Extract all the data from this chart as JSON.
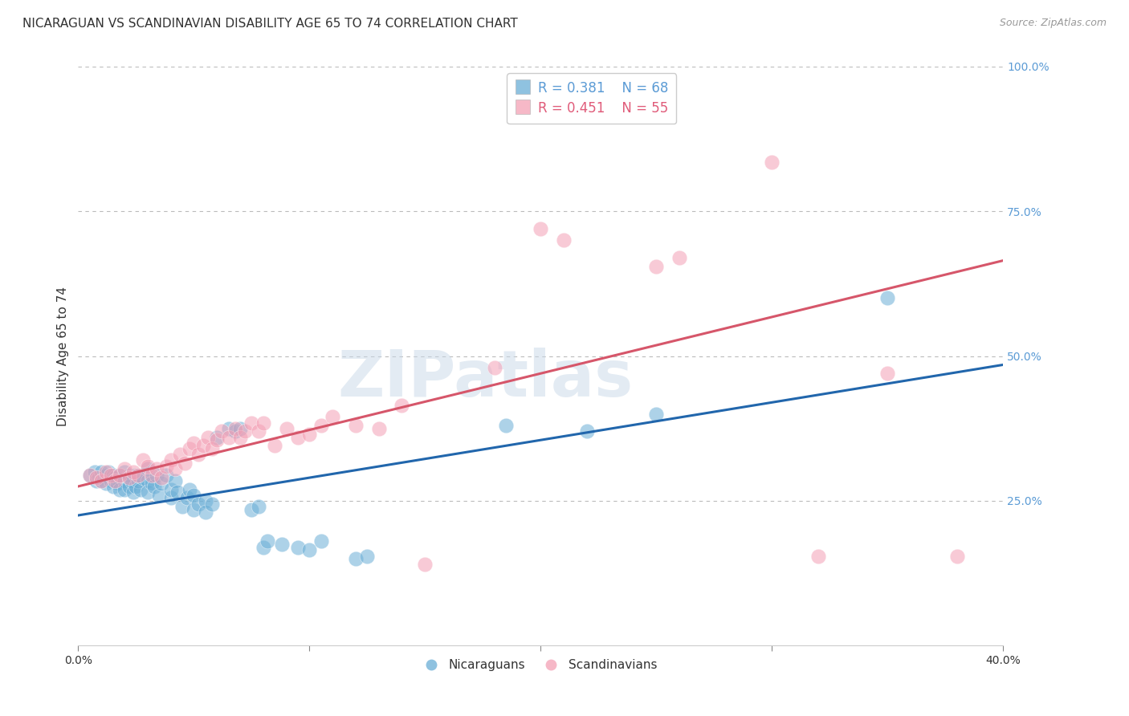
{
  "title": "NICARAGUAN VS SCANDINAVIAN DISABILITY AGE 65 TO 74 CORRELATION CHART",
  "source": "Source: ZipAtlas.com",
  "ylabel": "Disability Age 65 to 74",
  "xlim": [
    0.0,
    0.4
  ],
  "ylim": [
    0.0,
    1.0
  ],
  "xtick_pos": [
    0.0,
    0.1,
    0.2,
    0.3,
    0.4
  ],
  "xtick_labels": [
    "0.0%",
    "",
    "",
    "",
    "40.0%"
  ],
  "ytick_labels_right": [
    "25.0%",
    "50.0%",
    "75.0%",
    "100.0%"
  ],
  "ytick_positions_right": [
    0.25,
    0.5,
    0.75,
    1.0
  ],
  "nicaraguan_R": 0.381,
  "nicaraguan_N": 68,
  "scandinavian_R": 0.451,
  "scandinavian_N": 55,
  "blue_color": "#6aaed6",
  "pink_color": "#f4a0b5",
  "blue_line_color": "#2166ac",
  "pink_line_color": "#d6566a",
  "blue_scatter": [
    [
      0.005,
      0.295
    ],
    [
      0.007,
      0.3
    ],
    [
      0.008,
      0.285
    ],
    [
      0.009,
      0.29
    ],
    [
      0.01,
      0.3
    ],
    [
      0.01,
      0.285
    ],
    [
      0.012,
      0.295
    ],
    [
      0.012,
      0.28
    ],
    [
      0.013,
      0.3
    ],
    [
      0.014,
      0.285
    ],
    [
      0.015,
      0.295
    ],
    [
      0.015,
      0.275
    ],
    [
      0.016,
      0.29
    ],
    [
      0.017,
      0.28
    ],
    [
      0.018,
      0.295
    ],
    [
      0.018,
      0.27
    ],
    [
      0.02,
      0.3
    ],
    [
      0.02,
      0.285
    ],
    [
      0.02,
      0.27
    ],
    [
      0.022,
      0.295
    ],
    [
      0.022,
      0.275
    ],
    [
      0.023,
      0.285
    ],
    [
      0.024,
      0.265
    ],
    [
      0.025,
      0.295
    ],
    [
      0.025,
      0.275
    ],
    [
      0.026,
      0.285
    ],
    [
      0.027,
      0.27
    ],
    [
      0.028,
      0.29
    ],
    [
      0.03,
      0.305
    ],
    [
      0.03,
      0.285
    ],
    [
      0.03,
      0.265
    ],
    [
      0.032,
      0.28
    ],
    [
      0.033,
      0.275
    ],
    [
      0.034,
      0.295
    ],
    [
      0.035,
      0.26
    ],
    [
      0.036,
      0.28
    ],
    [
      0.038,
      0.295
    ],
    [
      0.04,
      0.255
    ],
    [
      0.04,
      0.27
    ],
    [
      0.042,
      0.285
    ],
    [
      0.043,
      0.265
    ],
    [
      0.045,
      0.24
    ],
    [
      0.047,
      0.255
    ],
    [
      0.048,
      0.27
    ],
    [
      0.05,
      0.235
    ],
    [
      0.05,
      0.26
    ],
    [
      0.052,
      0.245
    ],
    [
      0.055,
      0.25
    ],
    [
      0.055,
      0.23
    ],
    [
      0.058,
      0.245
    ],
    [
      0.06,
      0.36
    ],
    [
      0.065,
      0.375
    ],
    [
      0.068,
      0.37
    ],
    [
      0.07,
      0.375
    ],
    [
      0.075,
      0.235
    ],
    [
      0.078,
      0.24
    ],
    [
      0.08,
      0.17
    ],
    [
      0.082,
      0.18
    ],
    [
      0.088,
      0.175
    ],
    [
      0.095,
      0.17
    ],
    [
      0.1,
      0.165
    ],
    [
      0.105,
      0.18
    ],
    [
      0.12,
      0.15
    ],
    [
      0.125,
      0.155
    ],
    [
      0.185,
      0.38
    ],
    [
      0.22,
      0.37
    ],
    [
      0.25,
      0.4
    ],
    [
      0.35,
      0.6
    ]
  ],
  "pink_scatter": [
    [
      0.005,
      0.295
    ],
    [
      0.008,
      0.29
    ],
    [
      0.01,
      0.285
    ],
    [
      0.012,
      0.3
    ],
    [
      0.014,
      0.295
    ],
    [
      0.016,
      0.285
    ],
    [
      0.018,
      0.295
    ],
    [
      0.02,
      0.305
    ],
    [
      0.022,
      0.29
    ],
    [
      0.024,
      0.3
    ],
    [
      0.026,
      0.295
    ],
    [
      0.028,
      0.32
    ],
    [
      0.03,
      0.31
    ],
    [
      0.032,
      0.295
    ],
    [
      0.034,
      0.305
    ],
    [
      0.036,
      0.29
    ],
    [
      0.038,
      0.31
    ],
    [
      0.04,
      0.32
    ],
    [
      0.042,
      0.305
    ],
    [
      0.044,
      0.33
    ],
    [
      0.046,
      0.315
    ],
    [
      0.048,
      0.34
    ],
    [
      0.05,
      0.35
    ],
    [
      0.052,
      0.33
    ],
    [
      0.054,
      0.345
    ],
    [
      0.056,
      0.36
    ],
    [
      0.058,
      0.34
    ],
    [
      0.06,
      0.355
    ],
    [
      0.062,
      0.37
    ],
    [
      0.065,
      0.36
    ],
    [
      0.068,
      0.375
    ],
    [
      0.07,
      0.36
    ],
    [
      0.072,
      0.37
    ],
    [
      0.075,
      0.385
    ],
    [
      0.078,
      0.37
    ],
    [
      0.08,
      0.385
    ],
    [
      0.085,
      0.345
    ],
    [
      0.09,
      0.375
    ],
    [
      0.095,
      0.36
    ],
    [
      0.1,
      0.365
    ],
    [
      0.105,
      0.38
    ],
    [
      0.11,
      0.395
    ],
    [
      0.12,
      0.38
    ],
    [
      0.13,
      0.375
    ],
    [
      0.14,
      0.415
    ],
    [
      0.15,
      0.14
    ],
    [
      0.18,
      0.48
    ],
    [
      0.2,
      0.72
    ],
    [
      0.21,
      0.7
    ],
    [
      0.25,
      0.655
    ],
    [
      0.26,
      0.67
    ],
    [
      0.3,
      0.835
    ],
    [
      0.32,
      0.155
    ],
    [
      0.35,
      0.47
    ],
    [
      0.38,
      0.155
    ]
  ],
  "blue_line_x": [
    0.0,
    0.4
  ],
  "blue_line_y": [
    0.225,
    0.485
  ],
  "pink_line_x": [
    0.0,
    0.4
  ],
  "pink_line_y": [
    0.275,
    0.665
  ],
  "watermark_text": "ZIPatlas",
  "watermark_color": "#c8d8e8",
  "watermark_alpha": 0.5,
  "background_color": "#ffffff",
  "grid_color": "#bbbbbb"
}
